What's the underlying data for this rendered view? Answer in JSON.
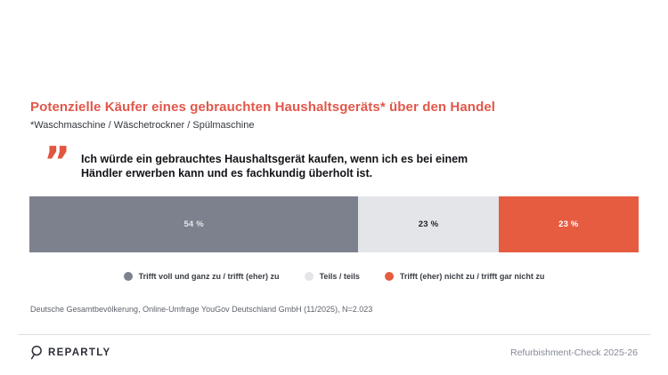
{
  "header": {
    "title": "Potenzielle Käufer eines gebrauchten Haushaltsgeräts* über den Handel",
    "subtitle": "*Waschmaschine / Wäschetrockner / Spülmaschine"
  },
  "quote": {
    "mark": "”",
    "lines": [
      "Ich würde ein gebrauchtes Haushaltsgerät kaufen, wenn ich es bei einem",
      "Händler erwerben kann und es fachkundig überholt ist."
    ]
  },
  "chart_data": {
    "type": "bar",
    "variant": "horizontal-stacked-100",
    "title": "Potenzielle Käufer eines gebrauchten Haushaltsgeräts* über den Handel",
    "question": "Ich würde ein gebrauchtes Haushaltsgerät kaufen, wenn ich es bei einem Händler erwerben kann und es fachkundig überholt ist.",
    "unit": "%",
    "xlim": [
      0,
      100
    ],
    "grid": false,
    "legend_position": "bottom-center",
    "categories": [
      "Trifft voll und ganz zu / trifft (eher) zu",
      "Teils / teils",
      "Trifft (eher) nicht zu / trifft gar nicht zu"
    ],
    "values": [
      54,
      23,
      23
    ],
    "segments": [
      {
        "label": "Trifft voll und ganz zu / trifft (eher) zu",
        "value": 54,
        "display": "54 %",
        "color": "#7d818e",
        "text_color": "#e4e6ea"
      },
      {
        "label": "Teils / teils",
        "value": 23,
        "display": "23 %",
        "color": "#e3e5e8",
        "text_color": "#1d1f24"
      },
      {
        "label": "Trifft (eher) nicht zu / trifft gar nicht zu",
        "value": 23,
        "display": "23 %",
        "color": "#e65c41",
        "text_color": "#ffffff"
      }
    ]
  },
  "source": "Deutsche Gesamtbevölkerung, Online-Umfrage YouGov Deutschland GmbH (11/2025), N=2.023",
  "footer": {
    "brand": "REPARTLY",
    "edition": "Refurbishment-Check 2025-26"
  },
  "colors": {
    "accent": "#e2574a",
    "quote_mark": "#e4553f",
    "bar_gray": "#7d818e",
    "bar_light_gray": "#e3e5e8",
    "bar_orange": "#e65c41",
    "divider": "#dcdee1"
  }
}
